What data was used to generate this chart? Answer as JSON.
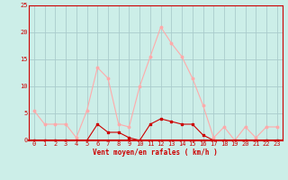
{
  "x": [
    0,
    1,
    2,
    3,
    4,
    5,
    6,
    7,
    8,
    9,
    10,
    11,
    12,
    13,
    14,
    15,
    16,
    17,
    18,
    19,
    20,
    21,
    22,
    23
  ],
  "rafales": [
    5.5,
    3.0,
    3.0,
    3.0,
    0.5,
    5.5,
    13.5,
    11.5,
    3.0,
    2.5,
    10.0,
    15.5,
    21.0,
    18.0,
    15.5,
    11.5,
    6.5,
    0.5,
    2.5,
    0.0,
    2.5,
    0.5,
    2.5,
    2.5
  ],
  "moyen": [
    0.0,
    0.0,
    0.0,
    0.0,
    0.0,
    0.0,
    3.0,
    1.5,
    1.5,
    0.5,
    0.0,
    3.0,
    4.0,
    3.5,
    3.0,
    3.0,
    1.0,
    0.0,
    0.0,
    0.0,
    0.0,
    0.0,
    0.0,
    0.0
  ],
  "line_color_rafales": "#ffaaaa",
  "line_color_moyen": "#cc0000",
  "bg_color": "#cceee8",
  "grid_color": "#aacccc",
  "axis_color": "#cc0000",
  "text_color": "#cc0000",
  "xlabel": "Vent moyen/en rafales ( km/h )",
  "ylim": [
    0,
    25
  ],
  "xlim": [
    -0.5,
    23.5
  ],
  "yticks": [
    0,
    5,
    10,
    15,
    20,
    25
  ],
  "xticks": [
    0,
    1,
    2,
    3,
    4,
    5,
    6,
    7,
    8,
    9,
    10,
    11,
    12,
    13,
    14,
    15,
    16,
    17,
    18,
    19,
    20,
    21,
    22,
    23
  ]
}
